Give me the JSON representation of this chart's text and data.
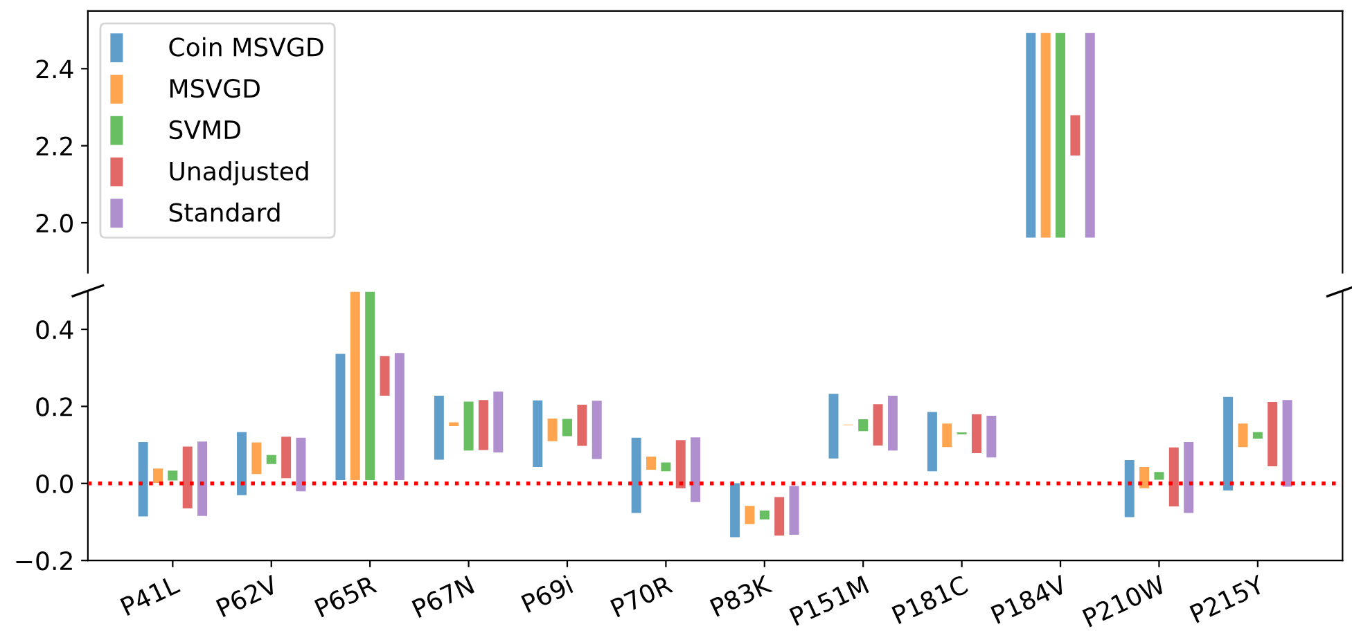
{
  "chart_data": [
    {
      "type": "bar",
      "categories": [
        null,
        null,
        null,
        null,
        null,
        null,
        null,
        null,
        null,
        null,
        null,
        null
      ],
      "ylim": [
        1.87,
        2.55
      ],
      "yticks": [
        {
          "value": 2.0,
          "label": "2.0"
        },
        {
          "value": 2.2,
          "label": "2.2"
        },
        {
          "value": 2.4,
          "label": "2.4"
        }
      ],
      "tick_labels": "y",
      "legend": "top left",
      "grid": false,
      "series": [
        {
          "name": "Coin MSVGD",
          "color": "#5f9ecb",
          "base": [
            null,
            null,
            null,
            null,
            null,
            null,
            null,
            null,
            null,
            1.96,
            null,
            null
          ],
          "values": [
            null,
            null,
            null,
            null,
            null,
            null,
            null,
            null,
            null,
            0.534,
            null,
            null
          ]
        },
        {
          "name": "MSVGD",
          "color": "#ffa54f",
          "base": [
            null,
            null,
            null,
            null,
            null,
            null,
            null,
            null,
            null,
            1.96,
            null,
            null
          ],
          "values": [
            null,
            null,
            null,
            null,
            null,
            null,
            null,
            null,
            null,
            0.534,
            null,
            null
          ]
        },
        {
          "name": "SVMD",
          "color": "#68bf62",
          "base": [
            null,
            null,
            null,
            null,
            null,
            null,
            null,
            null,
            null,
            1.96,
            null,
            null
          ],
          "values": [
            null,
            null,
            null,
            null,
            null,
            null,
            null,
            null,
            null,
            0.534,
            null,
            null
          ]
        },
        {
          "name": "Unadjusted",
          "color": "#e26868",
          "base": [
            null,
            null,
            null,
            null,
            null,
            null,
            null,
            null,
            null,
            2.173,
            null,
            null
          ],
          "values": [
            null,
            null,
            null,
            null,
            null,
            null,
            null,
            null,
            null,
            0.108,
            null,
            null
          ]
        },
        {
          "name": "Standard",
          "color": "#b08fcf",
          "base": [
            null,
            null,
            null,
            null,
            null,
            null,
            null,
            null,
            null,
            1.96,
            null,
            null
          ],
          "values": [
            null,
            null,
            null,
            null,
            null,
            null,
            null,
            null,
            null,
            0.534,
            null,
            null
          ]
        }
      ]
    },
    {
      "type": "bar",
      "categories": [
        "P41L",
        "P62V",
        "P65R",
        "P67N",
        "P69i",
        "P70R",
        "P83K",
        "P151M",
        "P181C",
        "P184V",
        "P210W",
        "P215Y"
      ],
      "ylim": [
        -0.2,
        0.5
      ],
      "yticks": [
        {
          "value": -0.2,
          "label": "−0.2"
        },
        {
          "value": 0.0,
          "label": "0.0"
        },
        {
          "value": 0.2,
          "label": "0.2"
        },
        {
          "value": 0.4,
          "label": "0.4"
        }
      ],
      "grid": false,
      "ref_lines": [
        {
          "axis": "y",
          "value": 0,
          "color": "#ff0000",
          "line_style": "dotted"
        }
      ],
      "series": [
        {
          "color": "#5f9ecb",
          "base": [
            -0.087,
            -0.032,
            0.007,
            0.06,
            0.041,
            -0.078,
            -0.141,
            0.063,
            0.03,
            null,
            -0.089,
            -0.02
          ],
          "values": [
            0.196,
            0.167,
            0.331,
            0.169,
            0.176,
            0.198,
            0.143,
            0.171,
            0.157,
            null,
            0.151,
            0.246
          ]
        },
        {
          "color": "#ffa54f",
          "base": [
            0.0,
            0.023,
            0.007,
            0.147,
            0.108,
            0.034,
            -0.107,
            0.15,
            0.093,
            null,
            -0.014,
            0.093
          ],
          "values": [
            0.04,
            0.085,
            0.492,
            0.013,
            0.062,
            0.037,
            0.05,
            0.004,
            0.064,
            null,
            0.058,
            0.064
          ]
        },
        {
          "color": "#68bf62",
          "base": [
            0.006,
            0.049,
            0.007,
            0.084,
            0.121,
            0.03,
            -0.095,
            0.134,
            0.126,
            null,
            0.008,
            0.115
          ],
          "values": [
            0.029,
            0.026,
            0.492,
            0.13,
            0.048,
            0.026,
            0.026,
            0.034,
            0.008,
            null,
            0.023,
            0.02
          ]
        },
        {
          "color": "#e26868",
          "base": [
            -0.066,
            0.012,
            0.226,
            0.085,
            0.096,
            -0.014,
            -0.137,
            0.097,
            0.077,
            null,
            -0.061,
            0.043
          ],
          "values": [
            0.163,
            0.111,
            0.106,
            0.133,
            0.11,
            0.128,
            0.103,
            0.11,
            0.104,
            null,
            0.156,
            0.17
          ]
        },
        {
          "color": "#b08fcf",
          "base": [
            -0.086,
            -0.022,
            0.007,
            0.079,
            0.062,
            -0.05,
            -0.135,
            0.084,
            0.066,
            null,
            -0.078,
            -0.01
          ],
          "values": [
            0.196,
            0.142,
            0.333,
            0.161,
            0.154,
            0.171,
            0.13,
            0.145,
            0.111,
            null,
            0.187,
            0.228
          ]
        }
      ]
    }
  ]
}
